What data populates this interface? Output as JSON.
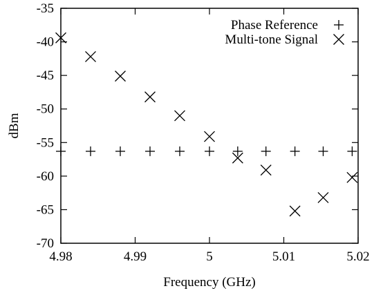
{
  "chart_data": {
    "type": "scatter",
    "xlabel": "Frequency (GHz)",
    "ylabel": "dBm",
    "xlim": [
      4.98,
      5.02
    ],
    "ylim": [
      -70,
      -35
    ],
    "xticks": [
      4.98,
      4.99,
      5,
      5.01,
      5.02
    ],
    "xtick_labels": [
      "4.98",
      "4.99",
      "5",
      "5.01",
      "5.02"
    ],
    "yticks": [
      -70,
      -65,
      -60,
      -55,
      -50,
      -45,
      -40,
      -35
    ],
    "ytick_labels": [
      "-70",
      "-65",
      "-60",
      "-55",
      "-50",
      "-45",
      "-40",
      "-35"
    ],
    "grid": false,
    "legend_position": "top-right",
    "series": [
      {
        "name": "Phase Reference",
        "marker": "plus",
        "x": [
          4.98,
          4.984,
          4.988,
          4.992,
          4.996,
          5.0,
          5.0038,
          5.0076,
          5.0115,
          5.0153,
          5.0192
        ],
        "y": [
          -56.3,
          -56.3,
          -56.3,
          -56.3,
          -56.3,
          -56.3,
          -56.3,
          -56.3,
          -56.3,
          -56.3,
          -56.3
        ]
      },
      {
        "name": "Multi-tone Signal",
        "marker": "cross",
        "x": [
          4.98,
          4.984,
          4.988,
          4.992,
          4.996,
          5.0,
          5.0038,
          5.0076,
          5.0115,
          5.0153,
          5.0192
        ],
        "y": [
          -39.4,
          -42.2,
          -45.1,
          -48.2,
          -51.0,
          -54.1,
          -57.3,
          -59.1,
          -65.2,
          -63.2,
          -60.2
        ]
      }
    ]
  }
}
